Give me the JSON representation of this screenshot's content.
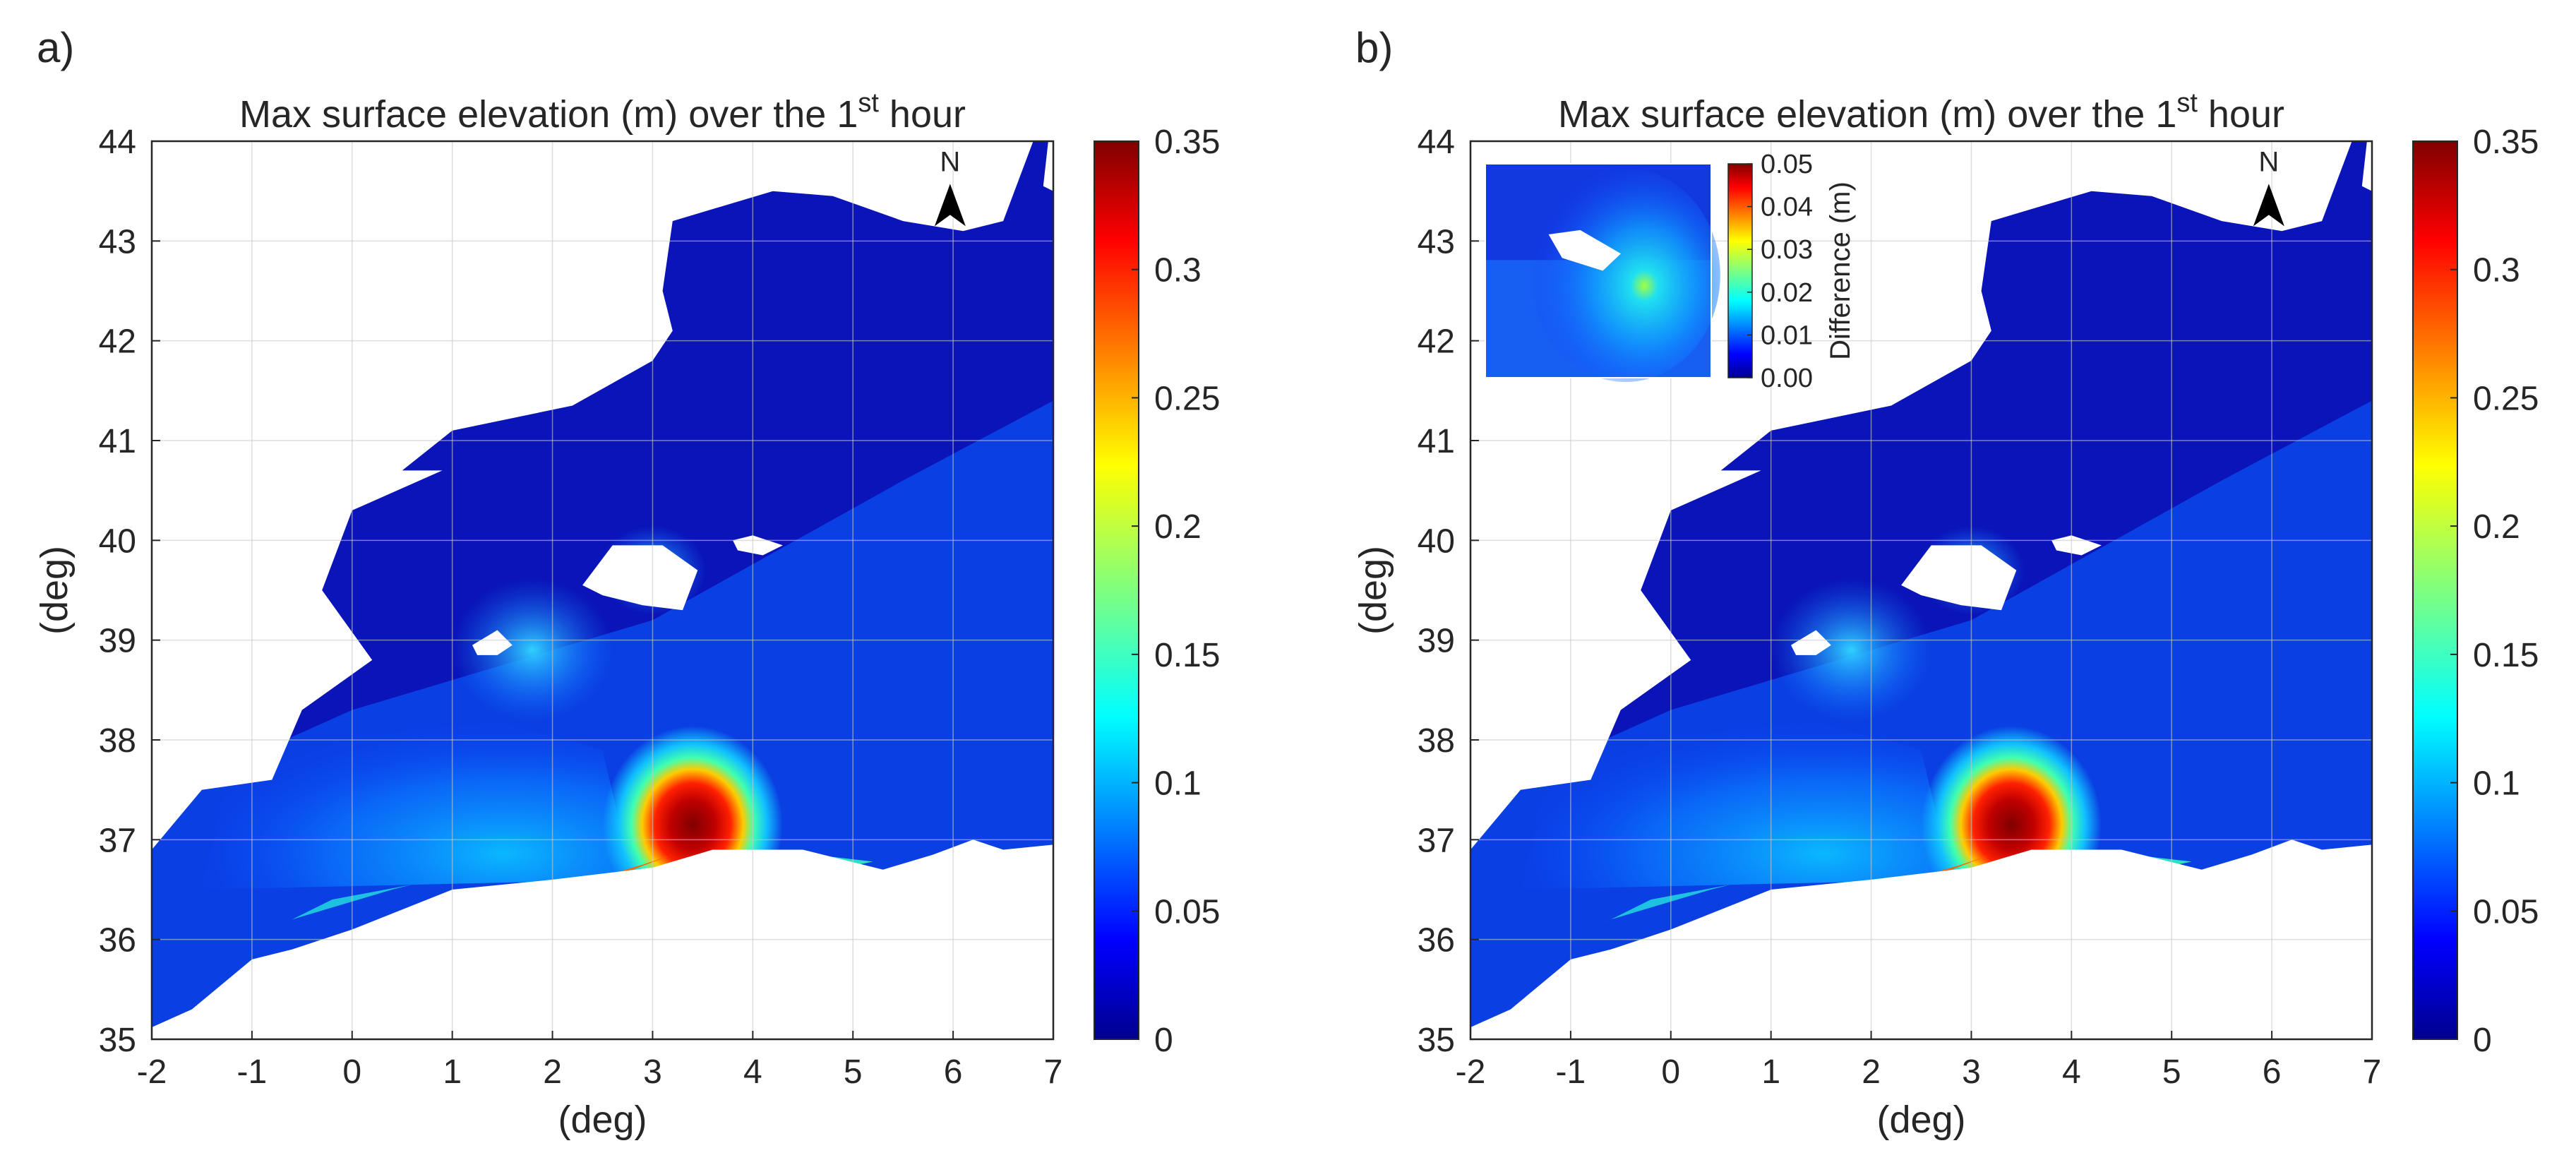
{
  "figure": {
    "panels": [
      "a)",
      "b)"
    ],
    "north_label": "N"
  },
  "chart_data": [
    {
      "type": "heatmap",
      "panel_label": "a)",
      "title": "Max surface elevation (m) over the 1",
      "title_superscript": "st",
      "title_suffix": " hour",
      "xlabel": "(deg)",
      "ylabel": "(deg)",
      "xlim": [
        -2,
        7
      ],
      "ylim": [
        35,
        44
      ],
      "xticks": [
        -2,
        -1,
        0,
        1,
        2,
        3,
        4,
        5,
        6,
        7
      ],
      "yticks": [
        35,
        36,
        37,
        38,
        39,
        40,
        41,
        42,
        43,
        44
      ],
      "grid": true,
      "colormap": "jet",
      "colorbar": {
        "min": 0,
        "max": 0.35,
        "ticks": [
          "0",
          "0.05",
          "0.1",
          "0.15",
          "0.2",
          "0.25",
          "0.3",
          "0.35"
        ]
      },
      "peak": {
        "lon": 3.4,
        "lat": 37.15,
        "value": 0.35
      }
    },
    {
      "type": "heatmap",
      "panel_label": "b)",
      "title": "Max surface elevation (m) over the 1",
      "title_superscript": "st",
      "title_suffix": " hour",
      "xlabel": "(deg)",
      "ylabel": "(deg)",
      "xlim": [
        -2,
        7
      ],
      "ylim": [
        35,
        44
      ],
      "xticks": [
        -2,
        -1,
        0,
        1,
        2,
        3,
        4,
        5,
        6,
        7
      ],
      "yticks": [
        35,
        36,
        37,
        38,
        39,
        40,
        41,
        42,
        43,
        44
      ],
      "grid": true,
      "colormap": "jet",
      "colorbar": {
        "min": 0,
        "max": 0.35,
        "ticks": [
          "0",
          "0.05",
          "0.1",
          "0.15",
          "0.2",
          "0.25",
          "0.3",
          "0.35"
        ]
      },
      "peak": {
        "lon": 3.4,
        "lat": 37.15,
        "value": 0.35
      },
      "inset": {
        "type": "heatmap",
        "label": "Difference (m)",
        "colorbar": {
          "min": 0.0,
          "max": 0.05,
          "ticks": [
            "0.00",
            "0.01",
            "0.02",
            "0.03",
            "0.04",
            "0.05"
          ]
        }
      }
    }
  ]
}
